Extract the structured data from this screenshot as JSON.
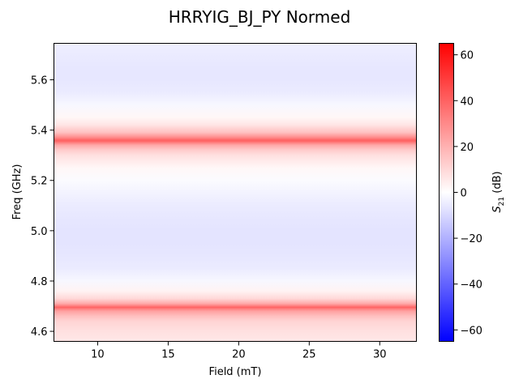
{
  "chart_data": {
    "type": "heatmap",
    "title": "HRRYIG_BJ_PY Normed",
    "xlabel": "Field (mT)",
    "ylabel": "Freq (GHz)",
    "xlim": [
      6.9,
      32.6
    ],
    "ylim": [
      4.56,
      5.745
    ],
    "x_ticks": [
      10,
      15,
      20,
      25,
      30
    ],
    "x_tick_labels": [
      "10",
      "15",
      "20",
      "25",
      "30"
    ],
    "y_ticks": [
      4.6,
      4.8,
      5.0,
      5.2,
      5.4,
      5.6
    ],
    "y_tick_labels": [
      "4.6",
      "4.8",
      "5.0",
      "5.2",
      "5.4",
      "5.6"
    ],
    "colorbar": {
      "label_main": "S",
      "label_sub": "21",
      "label_unit": " (dB)",
      "range": [
        -65,
        65
      ],
      "colormap": "bwr",
      "ticks": [
        -60,
        -40,
        -20,
        0,
        20,
        40,
        60
      ],
      "tick_labels": [
        "−60",
        "−40",
        "−20",
        "0",
        "20",
        "40",
        "60"
      ]
    },
    "frequency_profile_db": {
      "freq_ghz": [
        4.56,
        4.6,
        4.64,
        4.66,
        4.68,
        4.69,
        4.695,
        4.7,
        4.71,
        4.73,
        4.76,
        4.8,
        4.85,
        4.9,
        4.95,
        5.0,
        5.05,
        5.1,
        5.15,
        5.2,
        5.25,
        5.3,
        5.32,
        5.34,
        5.35,
        5.355,
        5.36,
        5.37,
        5.39,
        5.42,
        5.45,
        5.5,
        5.55,
        5.6,
        5.65,
        5.7,
        5.745
      ],
      "s21_db": [
        6,
        8,
        11,
        16,
        24,
        33,
        40,
        34,
        22,
        10,
        3,
        -2,
        -5,
        -6,
        -7,
        -7,
        -6,
        -5,
        -3,
        -1,
        2,
        8,
        13,
        22,
        32,
        38,
        40,
        30,
        16,
        7,
        2,
        -2,
        -5,
        -6,
        -6,
        -5,
        -4
      ]
    },
    "notes_on_color": {
      "min_color": "#0000ff",
      "mid_color": "#ffffff",
      "max_color": "#ff0000"
    }
  }
}
